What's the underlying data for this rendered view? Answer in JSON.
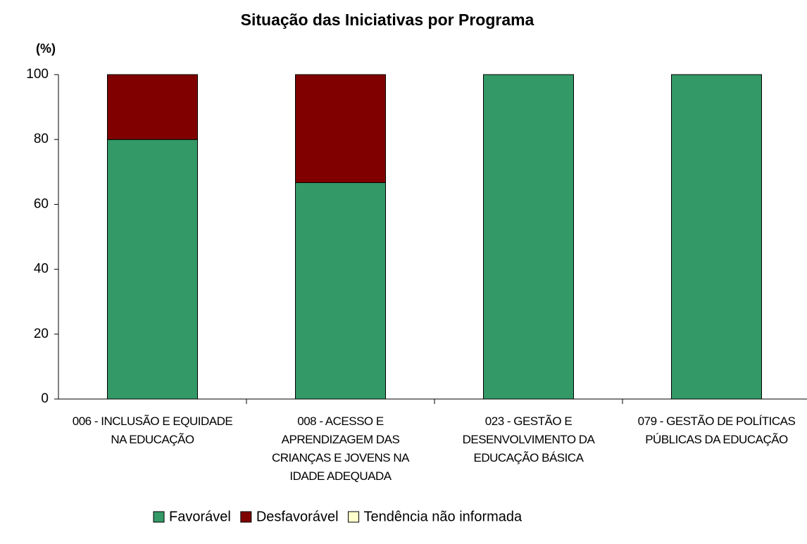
{
  "chart_data": {
    "type": "stacked_bar",
    "title": "Situação das Iniciativas por Programa",
    "y_label": "(%)",
    "categories": [
      "006 - INCLUSÃO E EQUIDADE NA EDUCAÇÃO",
      "008 - ACESSO E APRENDIZAGEM DAS CRIANÇAS E JOVENS NA IDADE ADEQUADA",
      "023 - GESTÃO E DESENVOLVIMENTO DA EDUCAÇÃO BÁSICA",
      "079 - GESTÃO DE POLÍTICAS PÚBLICAS DA EDUCAÇÃO"
    ],
    "series": [
      {
        "name": "Favorável",
        "color": "#339966",
        "values": [
          80,
          66.7,
          100,
          100
        ]
      },
      {
        "name": "Desfavorável",
        "color": "#800000",
        "values": [
          20,
          33.3,
          0,
          0
        ]
      },
      {
        "name": "Tendência não informada",
        "color": "#ffffcc",
        "values": [
          0,
          0,
          0,
          0
        ]
      }
    ],
    "ylim": [
      0,
      100
    ],
    "yticks": [
      0,
      20,
      40,
      60,
      80,
      100
    ],
    "grid": false,
    "legend": "bottom"
  }
}
